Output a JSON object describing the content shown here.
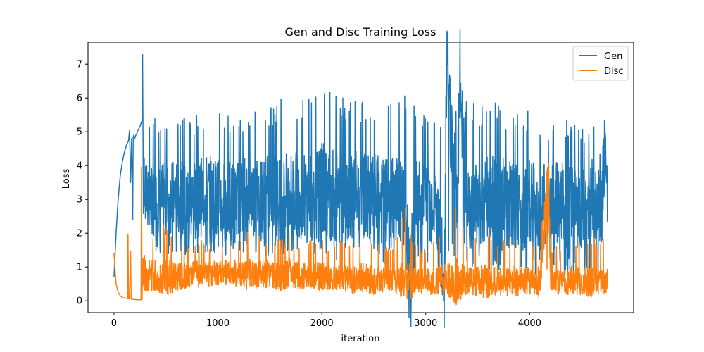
{
  "chart_data": {
    "type": "line",
    "title": "Gen and Disc Training Loss",
    "xlabel": "iteration",
    "ylabel": "Loss",
    "xlim": [
      -250,
      5000
    ],
    "ylim": [
      -0.35,
      7.65
    ],
    "xticks": [
      0,
      1000,
      2000,
      3000,
      4000
    ],
    "yticks": [
      0,
      1,
      2,
      3,
      4,
      5,
      6,
      7
    ],
    "grid": false,
    "legend_position": "top-right",
    "series": [
      {
        "name": "Gen",
        "color": "#1f77b4",
        "x": [
          0,
          20,
          40,
          60,
          80,
          100,
          120,
          140,
          150,
          160,
          170,
          180,
          185,
          190,
          200,
          210,
          220,
          230,
          240,
          250,
          255,
          260,
          265,
          270,
          275,
          280,
          300,
          350,
          400,
          500,
          600,
          700,
          800,
          900,
          1000,
          1100,
          1200,
          1300,
          1400,
          1500,
          1600,
          1700,
          1800,
          1900,
          2000,
          2100,
          2200,
          2300,
          2400,
          2500,
          2600,
          2700,
          2800,
          2850,
          2900,
          3000,
          3100,
          3180,
          3200,
          3300,
          3330,
          3400,
          3500,
          3600,
          3700,
          3800,
          3900,
          4000,
          4100,
          4200,
          4300,
          4400,
          4500,
          4600,
          4650,
          4700,
          4730,
          4750
        ],
        "y": [
          0.7,
          2.0,
          3.0,
          3.7,
          4.1,
          4.4,
          4.6,
          4.75,
          5.05,
          3.5,
          4.8,
          2.4,
          4.85,
          4.9,
          4.8,
          4.9,
          4.95,
          5.05,
          5.1,
          5.15,
          5.2,
          5.25,
          5.3,
          5.3,
          7.3,
          4.5,
          3.2,
          3.0,
          2.9,
          3.0,
          3.1,
          2.9,
          3.0,
          3.2,
          3.0,
          2.9,
          3.1,
          3.2,
          3.0,
          3.1,
          3.0,
          3.2,
          3.1,
          3.0,
          3.3,
          3.1,
          3.0,
          3.2,
          3.1,
          3.0,
          2.9,
          3.0,
          2.8,
          0.2,
          2.9,
          3.0,
          2.8,
          0.3,
          6.7,
          3.0,
          6.55,
          2.9,
          2.8,
          3.0,
          2.9,
          2.8,
          2.7,
          2.9,
          2.8,
          2.7,
          2.9,
          2.8,
          2.7,
          2.9,
          2.8,
          2.7,
          5.1,
          2.6
        ],
        "min_envelope": [
          0.7,
          2.0,
          3.0,
          3.7,
          4.1,
          4.4,
          4.6,
          4.75,
          5.05,
          3.5,
          4.8,
          2.4,
          4.85,
          4.9,
          4.8,
          4.9,
          4.95,
          5.05,
          5.1,
          5.15,
          5.2,
          5.25,
          5.3,
          5.3,
          7.3,
          2.5,
          2.2,
          1.8,
          1.5,
          1.3,
          1.4,
          1.3,
          1.2,
          1.4,
          1.3,
          1.2,
          1.4,
          1.5,
          1.3,
          1.2,
          1.4,
          1.3,
          1.2,
          1.4,
          1.3,
          1.2,
          1.1,
          1.3,
          1.2,
          1.1,
          1.0,
          1.2,
          1.0,
          0.2,
          1.1,
          1.0,
          0.9,
          0.3,
          1.0,
          1.0,
          1.0,
          0.9,
          0.9,
          0.8,
          0.9,
          0.7,
          0.9,
          0.8,
          0.7,
          0.6,
          0.8,
          0.7,
          0.7,
          0.6,
          0.6,
          0.5,
          0.6,
          1.4
        ],
        "max_envelope": [
          0.7,
          2.0,
          3.0,
          3.7,
          4.1,
          4.4,
          4.6,
          4.75,
          5.05,
          3.5,
          4.8,
          2.4,
          4.85,
          4.9,
          4.8,
          4.9,
          4.95,
          5.05,
          5.1,
          5.15,
          5.2,
          5.25,
          5.3,
          5.3,
          7.3,
          5.3,
          5.2,
          5.4,
          5.5,
          5.3,
          5.4,
          5.6,
          5.5,
          5.6,
          5.8,
          5.6,
          5.5,
          5.7,
          5.9,
          5.7,
          6.0,
          5.8,
          5.9,
          6.3,
          6.4,
          6.3,
          6.0,
          6.1,
          5.9,
          6.0,
          5.8,
          5.9,
          6.1,
          6.0,
          5.7,
          5.8,
          5.6,
          6.0,
          6.7,
          5.9,
          6.55,
          5.9,
          5.8,
          5.7,
          6.0,
          5.6,
          5.5,
          5.7,
          5.4,
          5.3,
          5.5,
          5.4,
          5.3,
          5.3,
          5.0,
          4.7,
          5.1,
          3.2
        ]
      },
      {
        "name": "Disc",
        "color": "#ff7f0e",
        "x": [
          0,
          20,
          40,
          60,
          80,
          100,
          120,
          130,
          135,
          140,
          145,
          150,
          160,
          165,
          170,
          175,
          180,
          200,
          220,
          240,
          260,
          265,
          270,
          275,
          280,
          290,
          300,
          400,
          500,
          600,
          700,
          800,
          900,
          1000,
          1100,
          1200,
          1300,
          1400,
          1500,
          1600,
          1700,
          1800,
          1900,
          2000,
          2100,
          2200,
          2300,
          2400,
          2500,
          2600,
          2700,
          2800,
          2900,
          3000,
          3100,
          3200,
          3300,
          3400,
          3500,
          3600,
          3700,
          3800,
          3900,
          4000,
          4100,
          4180,
          4200,
          4300,
          4400,
          4500,
          4600,
          4700,
          4750
        ],
        "y": [
          1.4,
          0.5,
          0.25,
          0.15,
          0.1,
          0.08,
          0.07,
          0.06,
          1.95,
          0.06,
          0.05,
          0.05,
          1.45,
          0.05,
          0.05,
          0.04,
          0.04,
          0.04,
          0.03,
          0.03,
          0.03,
          3.95,
          0.03,
          0.9,
          0.9,
          0.85,
          0.8,
          0.75,
          0.7,
          0.7,
          0.75,
          0.8,
          0.8,
          0.8,
          0.85,
          0.8,
          0.75,
          0.8,
          0.75,
          0.7,
          0.8,
          0.7,
          0.75,
          0.7,
          0.65,
          0.7,
          0.6,
          0.65,
          0.6,
          0.6,
          0.55,
          0.6,
          0.55,
          0.6,
          0.55,
          0.6,
          0.55,
          0.6,
          0.55,
          0.6,
          0.55,
          0.6,
          0.55,
          0.6,
          0.55,
          3.7,
          0.55,
          0.55,
          0.6,
          0.55,
          0.55,
          0.6,
          0.55
        ],
        "min_envelope": [
          1.4,
          0.5,
          0.25,
          0.15,
          0.1,
          0.08,
          0.07,
          0.06,
          1.95,
          0.06,
          0.05,
          0.05,
          1.45,
          0.05,
          0.05,
          0.04,
          0.04,
          0.04,
          0.03,
          0.03,
          0.03,
          3.95,
          0.03,
          0.3,
          0.3,
          0.3,
          0.3,
          0.3,
          0.35,
          0.3,
          0.35,
          0.4,
          0.35,
          0.45,
          0.5,
          0.4,
          0.35,
          0.4,
          0.35,
          0.3,
          0.4,
          0.35,
          0.35,
          0.3,
          0.3,
          0.35,
          0.3,
          0.35,
          0.3,
          0.3,
          0.3,
          0.3,
          0.3,
          0.35,
          0.3,
          0.35,
          0.3,
          0.35,
          0.3,
          0.35,
          0.3,
          0.35,
          0.3,
          0.35,
          0.3,
          0.3,
          0.3,
          0.3,
          0.35,
          0.3,
          0.35,
          0.35,
          0.45
        ],
        "max_envelope": [
          1.4,
          0.5,
          0.25,
          0.15,
          0.1,
          0.08,
          0.07,
          0.06,
          1.95,
          0.06,
          0.05,
          0.05,
          1.45,
          0.05,
          0.05,
          0.04,
          0.04,
          0.04,
          0.03,
          0.03,
          0.03,
          3.95,
          0.03,
          2.0,
          1.9,
          2.3,
          2.2,
          2.0,
          2.4,
          1.8,
          1.7,
          1.9,
          1.7,
          1.8,
          1.8,
          1.9,
          2.1,
          2.0,
          1.9,
          1.8,
          2.1,
          1.7,
          1.8,
          1.9,
          1.6,
          1.8,
          1.7,
          2.1,
          1.8,
          1.6,
          1.6,
          2.8,
          1.7,
          1.6,
          1.9,
          2.3,
          2.9,
          1.7,
          2.0,
          2.3,
          1.7,
          2.1,
          1.8,
          1.8,
          2.0,
          3.7,
          1.6,
          1.6,
          1.9,
          1.8,
          1.9,
          1.7,
          2.5
        ]
      }
    ]
  }
}
